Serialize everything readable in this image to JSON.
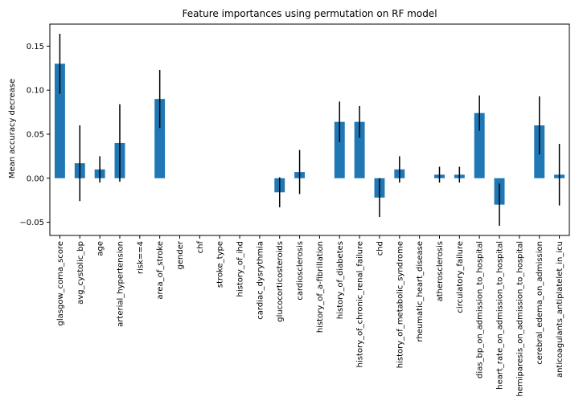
{
  "chart_data": {
    "type": "bar",
    "title": "Feature importances using permutation on RF model",
    "xlabel": "",
    "ylabel": "Mean accuracy decrease",
    "ylim": [
      -0.065,
      0.175
    ],
    "yticks": [
      -0.05,
      0.0,
      0.05,
      0.1,
      0.15
    ],
    "ytick_labels": [
      "−0.05",
      "0.00",
      "0.05",
      "0.10",
      "0.15"
    ],
    "bar_color": "#1f77b4",
    "error_color": "#000000",
    "grid": false,
    "categories": [
      "glasgow_coma_score",
      "avg_cystolic_bp",
      "age",
      "arterial_hypertension",
      "risk==4",
      "area_of_stroke",
      "gender",
      "chf",
      "stroke_type",
      "history_of_ihd",
      "cardiac_dysrythmia",
      "glucocorticosteroids",
      "cardiosclerosis",
      "history_of_a-fibrillation",
      "history_of_diabetes",
      "history_of_chronic_renal_failure",
      "chd",
      "history_of_metabolic_syndrome",
      "rheumatic_heart_disease",
      "atherosclerosis",
      "circulatory_failure",
      "dias_bp_on_admission_to_hospital",
      "heart_rate_on_admission_to_hospital",
      "hemiparesis_on_admission_to_hospital",
      "cerebral_edema_on_admission",
      "anticoagulants_antiplatelet_in_icu"
    ],
    "values": [
      0.13,
      0.017,
      0.01,
      0.04,
      0.0,
      0.09,
      0.0,
      0.0,
      0.0,
      0.0,
      0.0,
      -0.016,
      0.007,
      0.0,
      0.064,
      0.064,
      -0.022,
      0.01,
      0.0,
      0.004,
      0.004,
      0.074,
      -0.03,
      0.0,
      0.06,
      0.004
    ],
    "errors": [
      0.034,
      0.043,
      0.015,
      0.044,
      0.0,
      0.033,
      0.0,
      0.0,
      0.0,
      0.0,
      0.0,
      0.017,
      0.025,
      0.0,
      0.023,
      0.018,
      0.022,
      0.015,
      0.0,
      0.009,
      0.009,
      0.02,
      0.024,
      0.0,
      0.033,
      0.035
    ]
  }
}
